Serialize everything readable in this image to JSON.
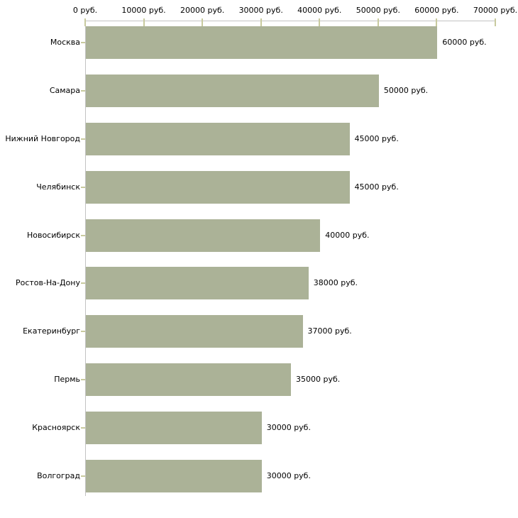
{
  "chart_data": {
    "type": "bar",
    "orientation": "horizontal",
    "title": "",
    "xlabel": "",
    "ylabel": "",
    "unit": "руб.",
    "grid": false,
    "legend": false,
    "categories": [
      "Москва",
      "Самара",
      "Нижний Новгород",
      "Челябинск",
      "Новосибирск",
      "Ростов-На-Дону",
      "Екатеринбург",
      "Пермь",
      "Красноярск",
      "Волгоград"
    ],
    "values": [
      60000,
      50000,
      45000,
      45000,
      40000,
      38000,
      37000,
      35000,
      30000,
      30000
    ],
    "value_labels": [
      "60000 руб.",
      "50000 руб.",
      "45000 руб.",
      "45000 руб.",
      "40000 руб.",
      "38000 руб.",
      "37000 руб.",
      "35000 руб.",
      "30000 руб.",
      "30000 руб."
    ],
    "xlim": [
      0,
      70000
    ],
    "x_tick_values": [
      0,
      10000,
      20000,
      30000,
      40000,
      50000,
      60000,
      70000
    ],
    "x_tick_labels": [
      "0 руб.",
      "10000 руб.",
      "20000 руб.",
      "30000 руб.",
      "40000 руб.",
      "50000 руб.",
      "60000 руб.",
      "70000 руб."
    ],
    "colors": {
      "bar": "#ABB297",
      "axis": "#C2C2C2",
      "tick": "#C8CA9E",
      "text": "#000000",
      "background": "#FFFFFF"
    }
  }
}
